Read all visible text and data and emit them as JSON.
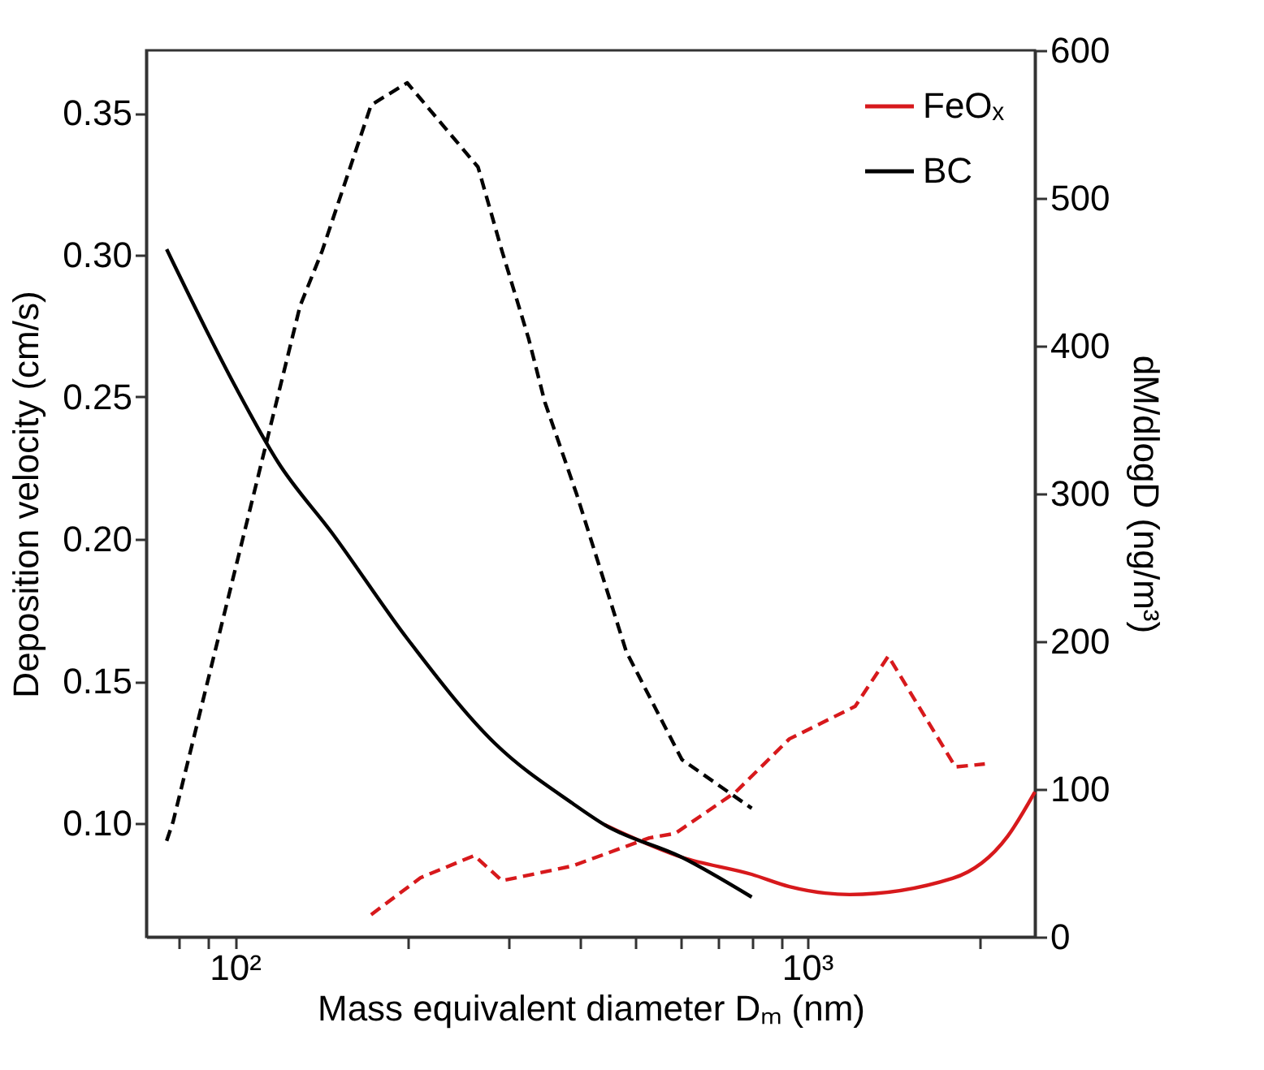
{
  "chart_data": {
    "type": "line",
    "xlabel": "Mass equivalent diameter Dₘ (nm)",
    "ylabel": "Deposition velocity (cm/s)",
    "y2label": "dM/dlogD (ng/m³)",
    "log": "x",
    "xlim": [
      70,
      2500
    ],
    "xticks": [
      {
        "value": 80,
        "label": null
      },
      {
        "value": 90,
        "label": null
      },
      {
        "value": 100,
        "label": "10²"
      },
      {
        "value": 200,
        "label": null
      },
      {
        "value": 300,
        "label": null
      },
      {
        "value": 400,
        "label": null
      },
      {
        "value": 500,
        "label": null
      },
      {
        "value": 600,
        "label": null
      },
      {
        "value": 700,
        "label": null
      },
      {
        "value": 800,
        "label": null
      },
      {
        "value": 900,
        "label": null
      },
      {
        "value": 1000,
        "label": "10³"
      },
      {
        "value": 2000,
        "label": null
      }
    ],
    "ylim": [
      0.06,
      0.372
    ],
    "yticks": [
      {
        "value": 0.1,
        "label": "0.10"
      },
      0.15,
      {
        "value": 0.2,
        "label": "0.20"
      },
      0.25,
      {
        "value": 0.3,
        "label": "0.30"
      },
      0.35
    ],
    "y2lim": [
      0,
      600
    ],
    "y2ticks": [
      0,
      100,
      200,
      300,
      400,
      500,
      600
    ],
    "grid": false,
    "legend": "top right",
    "marker": "none",
    "series": [
      {
        "name": "FeOₓ",
        "color": "#d7191c",
        "line_style": "solid",
        "x": [
          443,
          604,
          800,
          931,
          1186,
          1795,
          2240,
          2500
        ],
        "values": [
          0.0994,
          0.088,
          0.082,
          0.0777,
          0.0749,
          0.0806,
          0.0954,
          0.111
        ]
      },
      {
        "name": "BC",
        "color": "#000000",
        "line_style": "solid",
        "x": [
          76,
          100,
          119,
          148,
          200,
          285,
          389,
          443,
          604,
          800
        ],
        "values": [
          0.302,
          0.254,
          0.227,
          0.202,
          0.165,
          0.128,
          0.107,
          0.0994,
          0.088,
          0.074
        ]
      },
      {
        "color": "#000000",
        "line_style": "dashed",
        "axis": "y2",
        "x": [
          76,
          78,
          130,
          142,
          173,
          200,
          266,
          293,
          326,
          348,
          396,
          483,
          604,
          800
        ],
        "values": [
          65,
          78,
          427,
          464,
          563,
          578,
          521,
          464,
          405,
          362,
          299,
          193,
          120,
          87
        ]
      },
      {
        "color": "#d7191c",
        "line_style": "dashed",
        "axis": "y2",
        "x": [
          173,
          211,
          262,
          293,
          389,
          443,
          530,
          588,
          750,
          931,
          1213,
          1386,
          1816,
          2044
        ],
        "values": [
          15,
          40,
          55,
          38,
          48,
          56,
          67,
          70,
          98,
          134,
          156,
          190,
          115,
          117
        ]
      }
    ]
  }
}
